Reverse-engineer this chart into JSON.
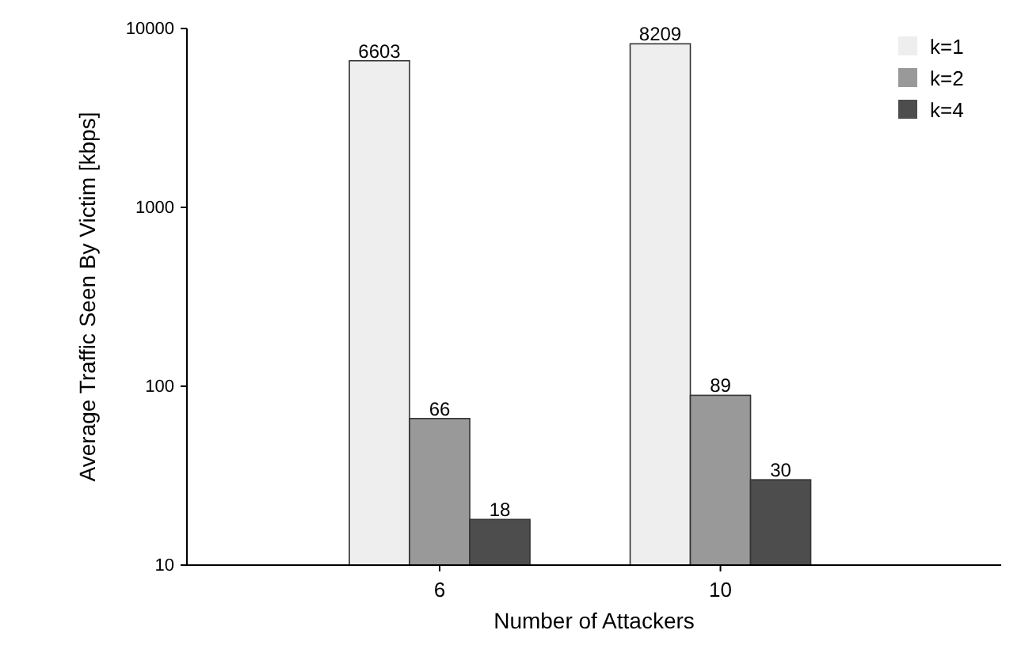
{
  "chart_data": {
    "type": "bar",
    "xlabel": "Number of Attackers",
    "ylabel": "Average Traffic Seen By Victim [kbps]",
    "categories": [
      "6",
      "10"
    ],
    "series": [
      {
        "name": "k=1",
        "color": "#eeeeee",
        "values": [
          6603,
          8209
        ]
      },
      {
        "name": "k=2",
        "color": "#999999",
        "values": [
          66,
          89
        ]
      },
      {
        "name": "k=4",
        "color": "#4d4d4d",
        "values": [
          18,
          30
        ]
      }
    ],
    "log": true,
    "ylim": [
      10,
      10000
    ],
    "yticks": [
      10,
      100,
      1000,
      10000
    ],
    "data_labels": true,
    "legend": "top right",
    "grid": false
  }
}
